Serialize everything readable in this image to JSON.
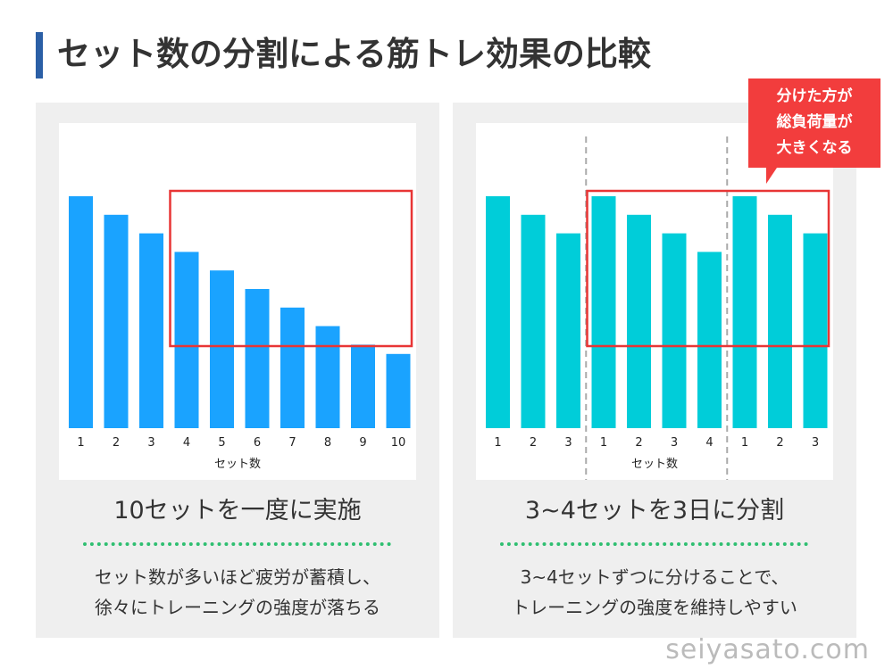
{
  "title": "セット数の分割による筋トレ効果の比較",
  "left_panel": {
    "heading": "10セットを一度に実施",
    "description": [
      "セット数が多いほど疲労が蓄積し、",
      "徐々にトレーニングの強度が落ちる"
    ]
  },
  "right_panel": {
    "heading": "3~4セットを3日に分割",
    "description": [
      "3~4セットずつに分けることで、",
      "トレーニングの強度を維持しやすい"
    ],
    "callout": [
      "分けた方が",
      "総負荷量が",
      "大きくなる"
    ]
  },
  "watermark": "seiyasato.com",
  "colors": {
    "left_bars": "#1aa3ff",
    "right_bars": "#00cdd9",
    "highlight": "#e83535",
    "title_accent": "#2b5fa6"
  },
  "chart_data": [
    {
      "type": "bar",
      "categories": [
        "1",
        "2",
        "3",
        "4",
        "5",
        "6",
        "7",
        "8",
        "9",
        "10"
      ],
      "values": [
        10,
        9,
        8,
        7,
        6,
        5,
        4,
        3,
        2,
        1.5
      ],
      "xlabel": "セット数",
      "ylabel": "",
      "ylim": [
        -2.5,
        10
      ],
      "highlight_range": [
        4,
        10
      ]
    },
    {
      "type": "bar",
      "categories": [
        "1",
        "2",
        "3",
        "1",
        "2",
        "3",
        "4",
        "1",
        "2",
        "3"
      ],
      "values": [
        10,
        9,
        8,
        10,
        9,
        8,
        7,
        10,
        9,
        8
      ],
      "xlabel": "セット数",
      "ylabel": "",
      "ylim": [
        -2.5,
        10
      ],
      "session_dividers_after_index": [
        2,
        6
      ],
      "highlight_range": [
        4,
        10
      ]
    }
  ]
}
